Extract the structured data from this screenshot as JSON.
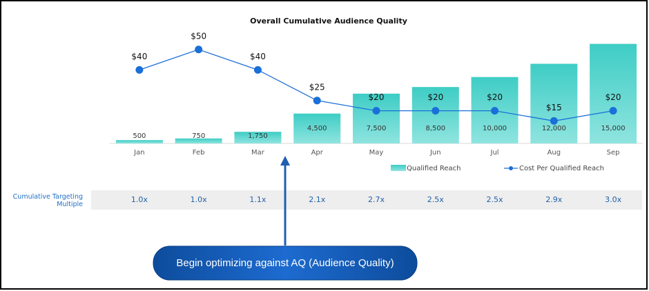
{
  "chart_data": {
    "type": "bar-line",
    "title": "Overall Cumulative Audience Quality",
    "categories": [
      "Jan",
      "Feb",
      "Mar",
      "Apr",
      "May",
      "Jun",
      "Jul",
      "Aug",
      "Sep"
    ],
    "series": [
      {
        "name": "Qualified Reach",
        "type": "bar",
        "color": "#44d0c8",
        "values": [
          500,
          750,
          1750,
          4500,
          7500,
          8500,
          10000,
          12000,
          15000
        ],
        "value_labels": [
          "500",
          "750",
          "1,750",
          "4,500",
          "7,500",
          "8,500",
          "10,000",
          "12,000",
          "15,000"
        ]
      },
      {
        "name": "Cost Per Qualified Reach",
        "type": "line",
        "axis": "y2",
        "color": "#1a6fd8",
        "values": [
          40,
          50,
          40,
          25,
          20,
          20,
          20,
          15,
          20
        ],
        "value_labels": [
          "$40",
          "$50",
          "$40",
          "$25",
          "$20",
          "$20",
          "$20",
          "$15",
          "$20"
        ]
      }
    ],
    "ylim": [
      0,
      16000
    ],
    "y2lim": [
      4,
      56
    ],
    "table": {
      "label": "Cumulative Targeting Multiple",
      "values": [
        "1.0x",
        "1.0x",
        "1.1x",
        "2.1x",
        "2.7x",
        "2.5x",
        "2.5x",
        "2.9x",
        "3.0x"
      ]
    },
    "annotation": "Begin optimizing against AQ (Audience Quality)"
  }
}
